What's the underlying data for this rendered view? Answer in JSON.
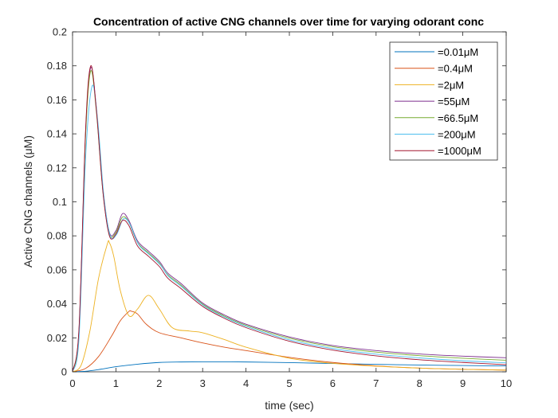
{
  "chart_data": {
    "type": "line",
    "title": "Concentration of active CNG channels over time for varying odorant conc",
    "xlabel": "time (sec)",
    "ylabel": "Active CNG channels (μM)",
    "xlim": [
      0,
      10
    ],
    "ylim": [
      0,
      0.2
    ],
    "xticks": [
      0,
      1,
      2,
      3,
      4,
      5,
      6,
      7,
      8,
      9,
      10
    ],
    "xtick_labels": [
      "0",
      "1",
      "2",
      "3",
      "4",
      "5",
      "6",
      "7",
      "8",
      "9",
      "10"
    ],
    "yticks": [
      0,
      0.02,
      0.04,
      0.06,
      0.08,
      0.1,
      0.12,
      0.14,
      0.16,
      0.18,
      0.2
    ],
    "ytick_labels": [
      "0",
      "0.02",
      "0.04",
      "0.06",
      "0.08",
      "0.1",
      "0.12",
      "0.14",
      "0.16",
      "0.18",
      "0.2"
    ],
    "grid": false,
    "legend_position": "top-right",
    "series": [
      {
        "name": "=0.01μM",
        "color": "#0072BD",
        "x": [
          0,
          0.3,
          0.6,
          1.0,
          1.5,
          2.0,
          2.5,
          3.0,
          4.0,
          5.0,
          6.0,
          7.0,
          8.0,
          9.0,
          10.0
        ],
        "y": [
          0,
          0.0003,
          0.0013,
          0.003,
          0.0045,
          0.0055,
          0.0058,
          0.0059,
          0.0058,
          0.0054,
          0.0049,
          0.0044,
          0.004,
          0.0037,
          0.0035
        ]
      },
      {
        "name": "=0.4μM",
        "color": "#D95319",
        "x": [
          0,
          0.3,
          0.6,
          0.9,
          1.1,
          1.3,
          1.35,
          1.5,
          1.7,
          2.0,
          2.5,
          3.0,
          3.5,
          4.0,
          5.0,
          6.0,
          7.0,
          8.0,
          9.0,
          10.0
        ],
        "y": [
          0,
          0.002,
          0.009,
          0.021,
          0.03,
          0.0355,
          0.0357,
          0.034,
          0.028,
          0.023,
          0.02,
          0.017,
          0.0145,
          0.0125,
          0.0085,
          0.0055,
          0.0035,
          0.0022,
          0.0015,
          0.001
        ]
      },
      {
        "name": "=2μM",
        "color": "#EDB120",
        "x": [
          0,
          0.2,
          0.4,
          0.6,
          0.8,
          0.85,
          0.95,
          1.1,
          1.3,
          1.5,
          1.75,
          2.0,
          2.3,
          2.7,
          3.0,
          3.5,
          4.0,
          5.0,
          6.0,
          7.0,
          8.0,
          9.0,
          10.0
        ],
        "y": [
          0,
          0.004,
          0.024,
          0.055,
          0.075,
          0.076,
          0.068,
          0.048,
          0.033,
          0.037,
          0.045,
          0.037,
          0.026,
          0.024,
          0.023,
          0.019,
          0.0145,
          0.008,
          0.005,
          0.0033,
          0.0022,
          0.0015,
          0.001
        ]
      },
      {
        "name": "=55μM",
        "color": "#7E2F8E",
        "x": [
          0,
          0.15,
          0.3,
          0.42,
          0.55,
          0.7,
          0.85,
          1.0,
          1.15,
          1.3,
          1.5,
          1.75,
          2.0,
          2.2,
          2.5,
          3.0,
          3.5,
          4.0,
          5.0,
          6.0,
          7.0,
          8.0,
          9.0,
          10.0
        ],
        "y": [
          0,
          0.025,
          0.14,
          0.179,
          0.155,
          0.108,
          0.082,
          0.083,
          0.093,
          0.089,
          0.077,
          0.071,
          0.065,
          0.058,
          0.052,
          0.0405,
          0.0335,
          0.028,
          0.0205,
          0.0155,
          0.0125,
          0.0105,
          0.0092,
          0.0083
        ]
      },
      {
        "name": "=66.5μM",
        "color": "#77AC30",
        "x": [
          0,
          0.15,
          0.3,
          0.42,
          0.55,
          0.7,
          0.85,
          1.0,
          1.15,
          1.3,
          1.5,
          1.75,
          2.0,
          2.2,
          2.5,
          3.0,
          3.5,
          4.0,
          5.0,
          6.0,
          7.0,
          8.0,
          9.0,
          10.0
        ],
        "y": [
          0,
          0.024,
          0.138,
          0.177,
          0.153,
          0.106,
          0.081,
          0.082,
          0.091,
          0.088,
          0.076,
          0.07,
          0.064,
          0.057,
          0.051,
          0.0398,
          0.0328,
          0.0274,
          0.0198,
          0.0148,
          0.0116,
          0.0095,
          0.008,
          0.0068
        ]
      },
      {
        "name": "=200μM",
        "color": "#4DBEEE",
        "x": [
          0,
          0.15,
          0.3,
          0.45,
          0.58,
          0.72,
          0.87,
          1.02,
          1.17,
          1.32,
          1.52,
          1.77,
          2.02,
          2.22,
          2.52,
          3.02,
          3.52,
          4.02,
          5.0,
          6.0,
          7.0,
          8.0,
          9.0,
          10.0
        ],
        "y": [
          0,
          0.02,
          0.125,
          0.168,
          0.148,
          0.104,
          0.08,
          0.081,
          0.09,
          0.087,
          0.075,
          0.069,
          0.063,
          0.056,
          0.05,
          0.039,
          0.032,
          0.0266,
          0.0188,
          0.0137,
          0.0104,
          0.0082,
          0.0065,
          0.0053
        ]
      },
      {
        "name": "=1000μM",
        "color": "#A2142F",
        "x": [
          0,
          0.15,
          0.3,
          0.42,
          0.55,
          0.7,
          0.85,
          1.0,
          1.15,
          1.3,
          1.5,
          1.75,
          2.0,
          2.2,
          2.5,
          3.0,
          3.5,
          4.0,
          5.0,
          6.0,
          7.0,
          8.0,
          9.0,
          10.0
        ],
        "y": [
          0,
          0.026,
          0.142,
          0.18,
          0.154,
          0.106,
          0.08,
          0.081,
          0.089,
          0.086,
          0.074,
          0.068,
          0.062,
          0.055,
          0.049,
          0.0385,
          0.0315,
          0.026,
          0.018,
          0.0128,
          0.0094,
          0.0071,
          0.0055,
          0.0042
        ]
      }
    ]
  }
}
